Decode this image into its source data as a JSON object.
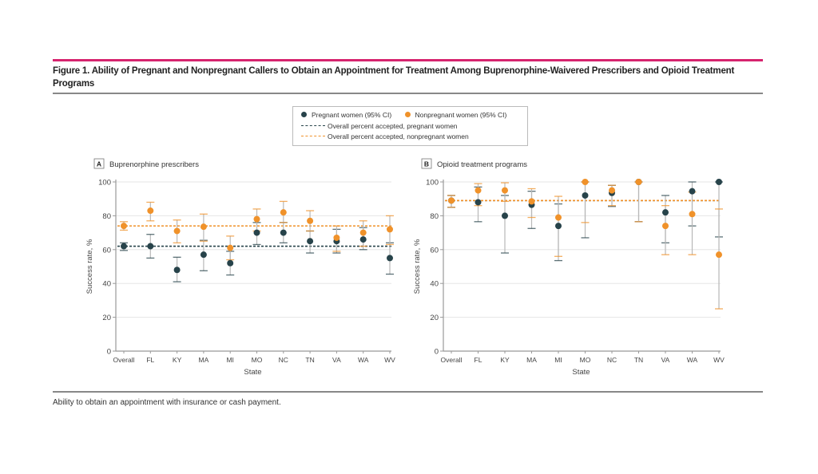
{
  "figure": {
    "title": "Figure 1. Ability of Pregnant and Nonpregnant Callers to Obtain an Appointment for Treatment Among Buprenorphine-Waivered Prescribers and Opioid Treatment Programs",
    "caption": "Ability to obtain an appointment with insurance or cash payment.",
    "accent_color": "#d6246e"
  },
  "legend": {
    "pregnant": "Pregnant women (95% CI)",
    "nonpregnant": "Nonpregnant women (95% CI)",
    "overall_pregnant": "Overall percent accepted, pregnant women",
    "overall_nonpregnant": "Overall percent accepted, nonpregnant women"
  },
  "colors": {
    "pregnant": "#27434a",
    "nonpregnant": "#f0922a",
    "ci": "#b8b8b8"
  },
  "chart_data": [
    {
      "type": "scatter",
      "panel_label": "A",
      "title": "Buprenorphine prescribers",
      "xlabel": "State",
      "ylabel": "Success rate, %",
      "ylim": [
        0,
        100
      ],
      "yticks": [
        0,
        20,
        40,
        60,
        80,
        100
      ],
      "grid": true,
      "categories": [
        "Overall",
        "FL",
        "KY",
        "MA",
        "MI",
        "MO",
        "NC",
        "TN",
        "VA",
        "WA",
        "WV"
      ],
      "series": [
        {
          "name": "Pregnant women (95% CI)",
          "values": [
            62,
            62,
            48,
            57,
            52,
            70,
            70,
            65,
            65,
            66,
            55
          ],
          "ci_low": [
            59.5,
            55,
            41,
            47.5,
            45,
            63,
            64,
            58,
            58,
            60,
            45.5
          ],
          "ci_high": [
            64,
            69,
            55.5,
            65.5,
            59,
            76,
            76,
            71,
            72,
            73,
            64
          ]
        },
        {
          "name": "Nonpregnant women (95% CI)",
          "values": [
            74,
            83,
            71,
            73.5,
            61,
            78,
            82,
            77,
            67,
            70,
            72
          ],
          "ci_low": [
            71.5,
            77,
            64,
            65,
            54,
            71,
            76,
            71,
            59,
            62,
            63
          ],
          "ci_high": [
            76.5,
            88,
            77.5,
            81,
            68,
            84,
            88.5,
            83,
            74,
            77,
            80
          ]
        }
      ],
      "reference_lines": [
        {
          "name": "Overall percent accepted, pregnant women",
          "value": 62
        },
        {
          "name": "Overall percent accepted, nonpregnant women",
          "value": 74
        }
      ]
    },
    {
      "type": "scatter",
      "panel_label": "B",
      "title": "Opioid treatment programs",
      "xlabel": "State",
      "ylabel": "Success rate, %",
      "ylim": [
        0,
        100
      ],
      "yticks": [
        0,
        20,
        40,
        60,
        80,
        100
      ],
      "grid": true,
      "categories": [
        "Overall",
        "FL",
        "KY",
        "MA",
        "MI",
        "MO",
        "NC",
        "TN",
        "VA",
        "WA",
        "WV"
      ],
      "series": [
        {
          "name": "Pregnant women (95% CI)",
          "values": [
            89,
            88,
            80,
            86.5,
            74,
            92,
            93.5,
            100,
            82,
            94.5,
            100
          ],
          "ci_low": [
            85,
            76.5,
            58,
            72.5,
            53.5,
            67,
            85.5,
            76.5,
            64,
            74,
            67.5
          ],
          "ci_high": [
            92,
            97,
            92,
            94.5,
            87,
            100,
            98,
            100,
            92,
            100,
            100
          ]
        },
        {
          "name": "Nonpregnant women (95% CI)",
          "values": [
            89,
            95,
            95,
            88.5,
            79,
            100,
            95,
            100,
            74,
            81,
            57
          ],
          "ci_low": [
            85,
            86,
            88.5,
            79,
            56,
            76,
            86,
            76.5,
            57,
            57,
            25
          ],
          "ci_high": [
            92,
            99,
            99.5,
            96,
            91.5,
            100,
            98,
            100,
            86,
            94,
            84
          ]
        }
      ],
      "reference_lines": [
        {
          "name": "Overall percent accepted, pregnant women",
          "value": 89
        },
        {
          "name": "Overall percent accepted, nonpregnant women",
          "value": 89
        }
      ]
    }
  ]
}
